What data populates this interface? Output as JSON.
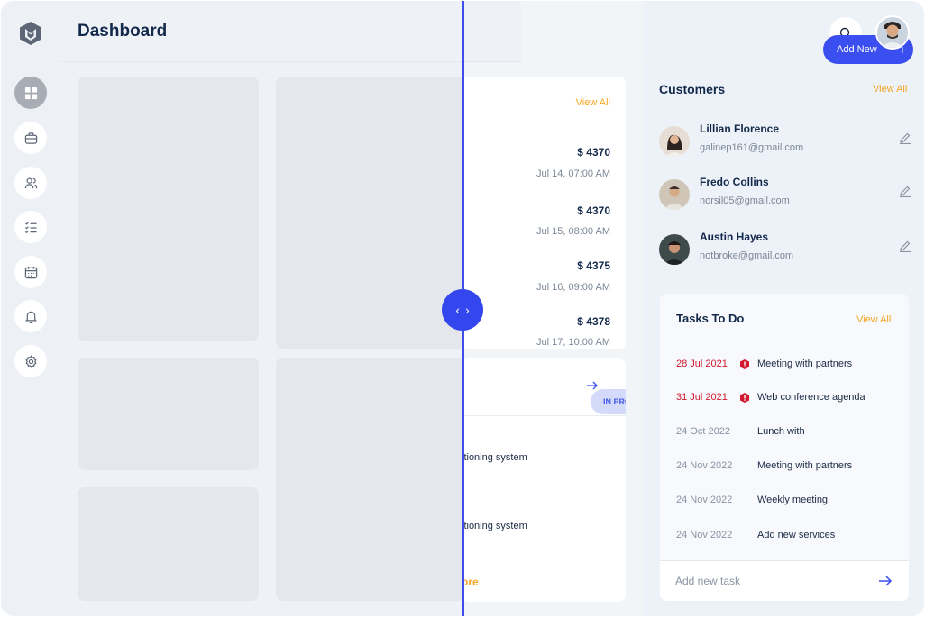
{
  "header": {
    "title": "Dashboard"
  },
  "sidebar": {
    "items": [
      {
        "icon": "dashboard-icon",
        "active": true
      },
      {
        "icon": "briefcase-icon",
        "active": false
      },
      {
        "icon": "users-icon",
        "active": false
      },
      {
        "icon": "checklist-icon",
        "active": false
      },
      {
        "icon": "calendar-icon",
        "active": false
      },
      {
        "icon": "bell-icon",
        "active": false
      },
      {
        "icon": "gear-icon",
        "active": false
      }
    ]
  },
  "transactions": {
    "view_all": "View All",
    "items": [
      {
        "amount": "$ 4370",
        "date": "Jul 14, 07:00 AM"
      },
      {
        "amount": "$ 4370",
        "date": "Jul 15, 08:00 AM"
      },
      {
        "amount": "$ 4375",
        "date": "Jul 16, 09:00 AM"
      },
      {
        "amount": "$ 4378",
        "date": "Jul 17, 10:00 AM"
      }
    ]
  },
  "project": {
    "status": "IN PRO",
    "lines": [
      "itioning system",
      "itioning system"
    ],
    "more": "ore"
  },
  "right_panel": {
    "add_new": "Add New",
    "add_plus": "+",
    "customers": {
      "title": "Customers",
      "view_all": "View All",
      "items": [
        {
          "name": "Lillian  Florence",
          "email": " galinep161@gmail.com"
        },
        {
          "name": "Fredo   Collins",
          "email": "norsil05@gmail.com"
        },
        {
          "name": "Austin Hayes",
          "email": "notbroke@gmail.com"
        }
      ]
    },
    "tasks": {
      "title": "Tasks To Do",
      "view_all": "View All",
      "items": [
        {
          "date": "28 Jul 2021",
          "text": "Meeting with partners",
          "urgent": true
        },
        {
          "date": "31 Jul 2021",
          "text": "Web conference agenda",
          "urgent": true
        },
        {
          "date": "24 Oct 2022",
          "text": "Lunch with",
          "urgent": false
        },
        {
          "date": "24 Nov 2022",
          "text": "Meeting with partners",
          "urgent": false
        },
        {
          "date": "24 Nov 2022",
          "text": "Weekly meeting",
          "urgent": false
        },
        {
          "date": "24 Nov 2022",
          "text": "Add new services",
          "urgent": false
        }
      ],
      "add_placeholder": "Add new task"
    }
  },
  "colors": {
    "accent": "#3b4ff0",
    "link": "#f5a623",
    "urgent": "#d0192e",
    "navy": "#13294b"
  }
}
